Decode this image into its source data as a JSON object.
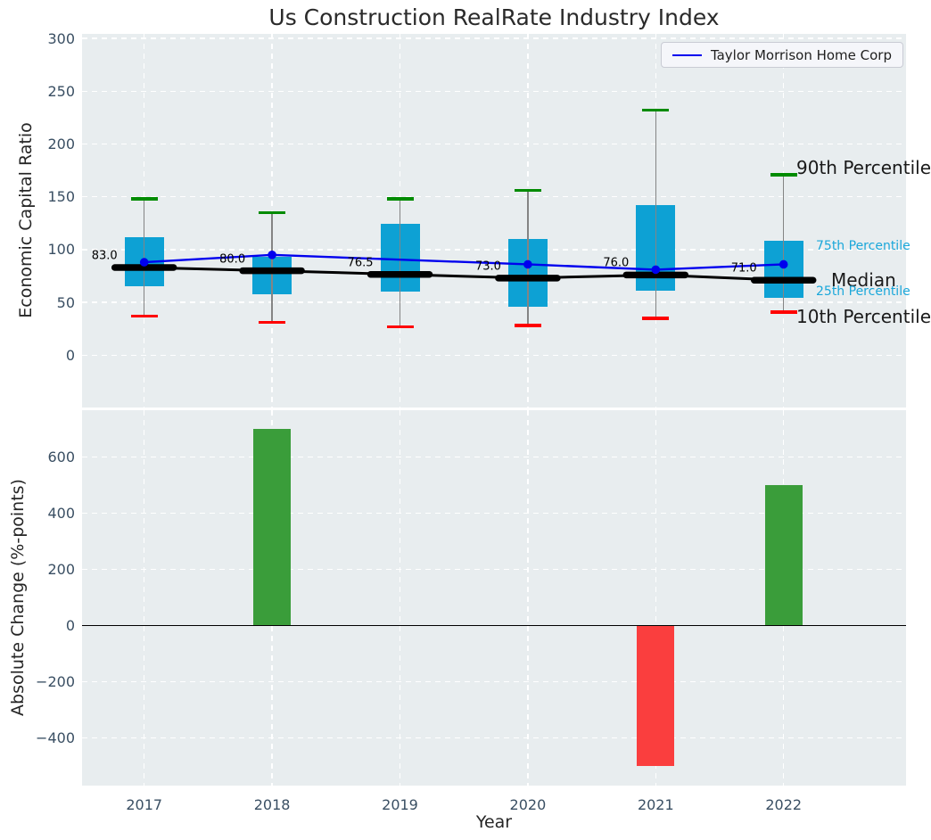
{
  "title": "Us Construction RealRate Industry Index",
  "legend": {
    "label": "Taylor Morrison Home Corp"
  },
  "colors": {
    "box_fill": "#0da1d4",
    "company_line": "#0000ee",
    "p90_cap": "#008b00",
    "p10_cap": "#ff0000",
    "median_line": "#000000",
    "whisker": "#848484",
    "bar_up": "#3a9d3a",
    "bar_down": "#fa3e3e",
    "cyan_label": "#1aa7da",
    "black_label": "#1a1a1a"
  },
  "chart_data": {
    "type": "combo",
    "x": [
      "2017",
      "2018",
      "2019",
      "2020",
      "2021",
      "2022"
    ],
    "xlabel": "Year",
    "top_chart": {
      "type": "boxplot+line",
      "title": "Us Construction RealRate Industry Index",
      "ylabel": "Economic Capital Ratio",
      "ylim": [
        -50,
        304
      ],
      "yticks": [
        0,
        50,
        100,
        150,
        200,
        250,
        300
      ],
      "ytick_labels": [
        "0",
        "50",
        "100",
        "150",
        "200",
        "250",
        "300"
      ],
      "grid": true,
      "legend_position": "upper right",
      "percentiles": {
        "p90": [
          148,
          135,
          148,
          156,
          232,
          171
        ],
        "p75": [
          112,
          93,
          124,
          110,
          142,
          108
        ],
        "median": [
          83.0,
          80.0,
          76.5,
          73.0,
          76.0,
          71.0
        ],
        "p25": [
          65,
          58,
          60,
          46,
          61,
          54
        ],
        "p10": [
          37,
          31,
          27,
          28,
          35,
          41
        ]
      },
      "median_labels": [
        "83.0",
        "80.0",
        "76.5",
        "73.0",
        "76.0",
        "71.0"
      ],
      "company_series": {
        "name": "Taylor Morrison Home Corp",
        "values": [
          88,
          95,
          null,
          86,
          81,
          86
        ]
      },
      "side_labels": [
        {
          "text": "90th Percentile",
          "value": 178,
          "style": "black",
          "x": 801
        },
        {
          "text": "75th Percentile",
          "value": 103.5,
          "style": "cyan",
          "x": 823
        },
        {
          "text": "Median",
          "value": 71.2,
          "style": "black",
          "x": 840
        },
        {
          "text": "25th Percentile",
          "value": 60.2,
          "style": "cyan",
          "x": 823
        },
        {
          "text": "10th Percentile",
          "value": 36.6,
          "style": "black",
          "x": 801
        }
      ]
    },
    "bottom_chart": {
      "type": "bar",
      "ylabel": "Absolute Change (%-points)",
      "ylim": [
        -569,
        764
      ],
      "yticks": [
        -400,
        -200,
        0,
        200,
        400,
        600
      ],
      "ytick_labels": [
        "−400",
        "−200",
        "0",
        "200",
        "400",
        "600"
      ],
      "grid": true,
      "values": [
        0,
        700,
        0,
        0,
        -500,
        500
      ]
    }
  }
}
